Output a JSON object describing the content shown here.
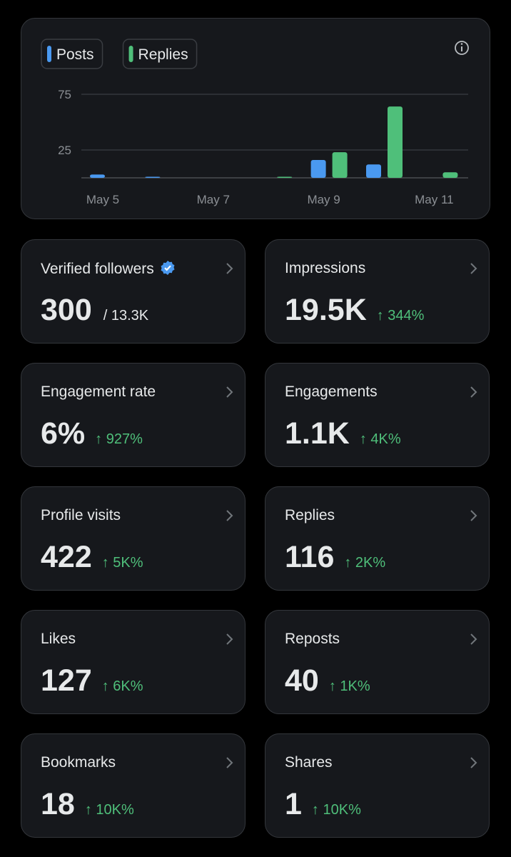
{
  "chart_data": {
    "type": "bar",
    "categories": [
      "May 5",
      null,
      "May 7",
      null,
      "May 9",
      null,
      "May 11"
    ],
    "series": [
      {
        "name": "Posts",
        "color": "#4a99f0",
        "values": [
          3,
          1,
          0,
          0,
          16,
          12,
          0
        ]
      },
      {
        "name": "Replies",
        "color": "#4fbf7a",
        "values": [
          0,
          0,
          0,
          1,
          23,
          64,
          5
        ]
      }
    ],
    "ylim": [
      0,
      75
    ],
    "yticks": [
      25,
      75
    ],
    "grid": true
  },
  "cards": [
    {
      "title": "Verified followers",
      "value": "300",
      "total": "/ 13.3K"
    },
    {
      "title": "Impressions",
      "value": "19.5K",
      "change": "↑ 344%"
    },
    {
      "title": "Engagement rate",
      "value": "6%",
      "change": "↑ 927%"
    },
    {
      "title": "Engagements",
      "value": "1.1K",
      "change": "↑ 4K%"
    },
    {
      "title": "Profile visits",
      "value": "422",
      "change": "↑ 5K%"
    },
    {
      "title": "Replies",
      "value": "116",
      "change": "↑ 2K%"
    },
    {
      "title": "Likes",
      "value": "127",
      "change": "↑ 6K%"
    },
    {
      "title": "Reposts",
      "value": "40",
      "change": "↑ 1K%"
    },
    {
      "title": "Bookmarks",
      "value": "18",
      "change": "↑ 10K%"
    },
    {
      "title": "Shares",
      "value": "1",
      "change": "↑ 10K%"
    }
  ]
}
